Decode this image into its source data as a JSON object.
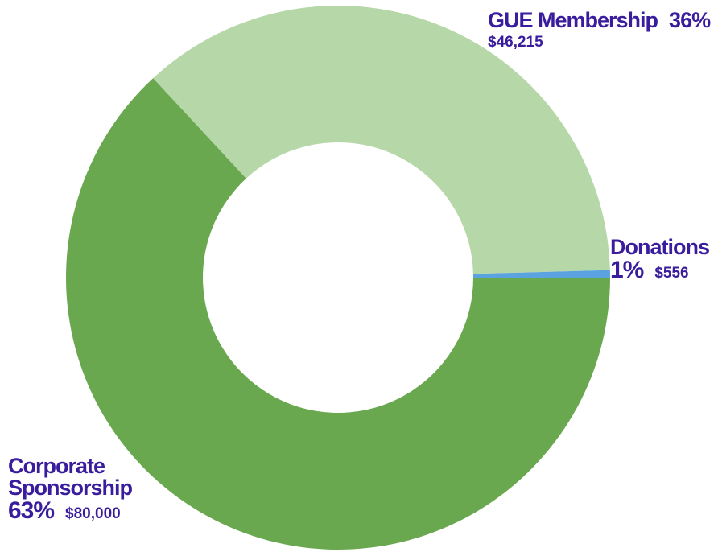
{
  "chart_data": {
    "type": "donut",
    "categories": [
      "Corporate Sponsorship",
      "GUE Membership",
      "Donations"
    ],
    "values": [
      80000,
      46215,
      556
    ],
    "value_labels": [
      "$80,000",
      "$46,215",
      "$556"
    ],
    "percents": [
      63,
      36,
      1
    ],
    "percent_labels": [
      "63%",
      "36%",
      "1%"
    ],
    "colors": [
      "#6aa84f",
      "#b6d7a8",
      "#5ba3e0"
    ]
  }
}
